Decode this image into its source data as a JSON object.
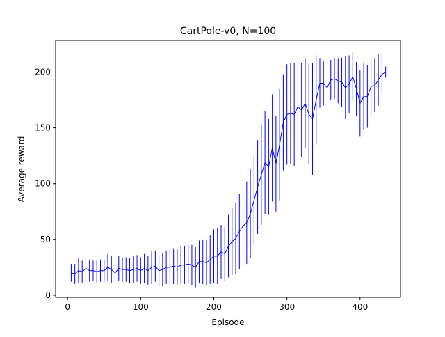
{
  "chart_data": {
    "type": "errorbar_line",
    "title": "CartPole-v0, N=100",
    "x_label": "Episode",
    "y_label": "Average reward",
    "x": [
      5,
      10,
      15,
      20,
      25,
      30,
      35,
      40,
      45,
      50,
      55,
      60,
      65,
      70,
      75,
      80,
      85,
      90,
      95,
      100,
      105,
      110,
      115,
      120,
      125,
      130,
      135,
      140,
      145,
      150,
      155,
      160,
      165,
      170,
      175,
      180,
      185,
      190,
      195,
      200,
      205,
      210,
      215,
      220,
      225,
      230,
      235,
      240,
      245,
      250,
      255,
      260,
      265,
      270,
      275,
      280,
      285,
      290,
      295,
      300,
      305,
      310,
      315,
      320,
      325,
      330,
      335,
      340,
      345,
      350,
      355,
      360,
      365,
      370,
      375,
      380,
      385,
      390,
      395,
      400,
      405,
      410,
      415,
      420,
      425,
      430,
      435
    ],
    "series": [
      {
        "color": "#0000ff",
        "values": [
          20,
          19,
          22,
          21,
          24,
          22,
          22,
          21,
          22,
          22,
          25,
          23,
          20,
          24,
          23,
          23,
          22,
          23,
          24,
          22,
          24,
          22,
          25,
          26,
          22,
          23,
          25,
          25,
          26,
          25,
          27,
          27,
          28,
          27,
          25,
          30,
          30,
          29,
          32,
          35,
          35,
          39,
          37,
          44,
          48,
          51,
          57,
          62,
          65,
          73,
          85,
          97,
          108,
          119,
          115,
          132,
          118,
          135,
          155,
          162,
          163,
          162,
          169,
          166,
          172,
          162,
          158,
          175,
          190,
          190,
          186,
          193,
          194,
          192,
          191,
          186,
          189,
          196,
          185,
          172,
          178,
          178,
          187,
          188,
          193,
          198,
          200
        ],
        "errors": [
          8,
          9,
          11,
          10,
          12,
          10,
          9,
          10,
          10,
          10,
          12,
          12,
          11,
          11,
          11,
          11,
          11,
          12,
          12,
          12,
          13,
          13,
          15,
          14,
          14,
          15,
          15,
          16,
          16,
          16,
          17,
          17,
          17,
          18,
          18,
          19,
          20,
          20,
          22,
          24,
          25,
          24,
          24,
          28,
          30,
          32,
          34,
          36,
          37,
          40,
          40,
          42,
          45,
          46,
          43,
          48,
          43,
          50,
          43,
          45,
          45,
          46,
          40,
          42,
          40,
          45,
          50,
          40,
          22,
          20,
          22,
          18,
          18,
          20,
          22,
          28,
          26,
          22,
          24,
          30,
          30,
          28,
          26,
          24,
          23,
          18,
          5
        ]
      }
    ],
    "xlim": [
      -16.3,
      455.3
    ],
    "ylim": [
      -1.9,
      228.4
    ],
    "xticks": [
      0,
      100,
      200,
      300,
      400
    ],
    "yticks": [
      0,
      50,
      100,
      150,
      200
    ]
  }
}
